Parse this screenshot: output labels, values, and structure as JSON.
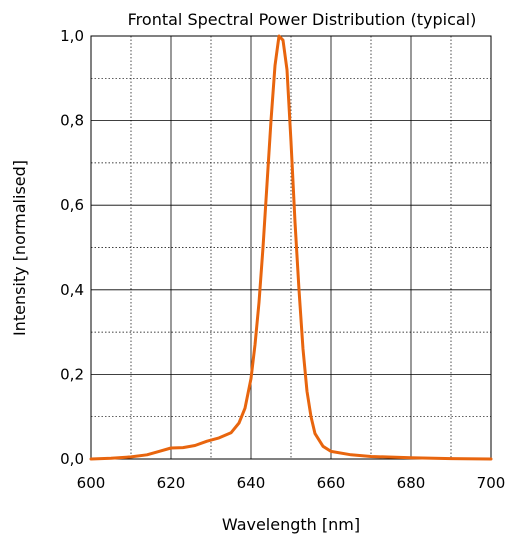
{
  "chart_data": {
    "type": "line",
    "title": "Frontal Spectral Power Distribution (typical)",
    "xlabel": "Wavelength [nm]",
    "ylabel": "Intensity [normalised]",
    "xlim": [
      600,
      700
    ],
    "ylim": [
      0,
      1.0
    ],
    "x_ticks": [
      "600",
      "620",
      "640",
      "660",
      "680",
      "700"
    ],
    "y_ticks": [
      "0,0",
      "0,2",
      "0,4",
      "0,6",
      "0,8",
      "1,0"
    ],
    "grid": true,
    "line_color": "#e8650e",
    "series": [
      {
        "points": [
          [
            600,
            0.0
          ],
          [
            605,
            0.002
          ],
          [
            610,
            0.005
          ],
          [
            614,
            0.01
          ],
          [
            617,
            0.018
          ],
          [
            620,
            0.026
          ],
          [
            623,
            0.027
          ],
          [
            626,
            0.032
          ],
          [
            629,
            0.042
          ],
          [
            632,
            0.05
          ],
          [
            635,
            0.062
          ],
          [
            637,
            0.085
          ],
          [
            638.5,
            0.12
          ],
          [
            640,
            0.19
          ],
          [
            641,
            0.27
          ],
          [
            642,
            0.37
          ],
          [
            643,
            0.5
          ],
          [
            644,
            0.65
          ],
          [
            645,
            0.8
          ],
          [
            646,
            0.93
          ],
          [
            647,
            1.0
          ],
          [
            648,
            0.99
          ],
          [
            649,
            0.92
          ],
          [
            650,
            0.75
          ],
          [
            651,
            0.56
          ],
          [
            652,
            0.4
          ],
          [
            653,
            0.26
          ],
          [
            654,
            0.16
          ],
          [
            655,
            0.1
          ],
          [
            656,
            0.06
          ],
          [
            658,
            0.03
          ],
          [
            660,
            0.018
          ],
          [
            665,
            0.01
          ],
          [
            670,
            0.006
          ],
          [
            680,
            0.003
          ],
          [
            690,
            0.001
          ],
          [
            700,
            0.0
          ]
        ]
      }
    ]
  }
}
